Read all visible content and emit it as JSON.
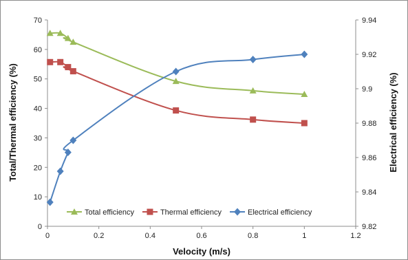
{
  "chart_data": {
    "type": "line",
    "title": "",
    "xlabel": "Velocity (m/s)",
    "ylabel_left": "Total/Thermal efficiency (%)",
    "ylabel_right": "Electrical efficiency (%)",
    "xlim": [
      0,
      1.2
    ],
    "xticks": [
      "0",
      "0.2",
      "0.4",
      "0.6",
      "0.8",
      "1",
      "1.2"
    ],
    "ylim_left": [
      0,
      70
    ],
    "yticks_left": [
      "0",
      "10",
      "20",
      "30",
      "40",
      "50",
      "60",
      "70"
    ],
    "ylim_right": [
      9.82,
      9.94
    ],
    "yticks_right": [
      "9.82",
      "9.84",
      "9.86",
      "9.88",
      "9.9",
      "9.92",
      "9.94"
    ],
    "grid": false,
    "legend_position": "bottom-inside",
    "series": [
      {
        "name": "Total efficiency",
        "axis": "left",
        "color": "#9BBB59",
        "marker": "triangle",
        "x": [
          0.01,
          0.05,
          0.08,
          0.1,
          0.5,
          0.8,
          1.0
        ],
        "y": [
          65.5,
          65.5,
          63.8,
          62.5,
          49.2,
          46.0,
          44.8
        ]
      },
      {
        "name": "Thermal efficiency",
        "axis": "left",
        "color": "#C0504D",
        "marker": "square",
        "x": [
          0.01,
          0.05,
          0.08,
          0.1,
          0.5,
          0.8,
          1.0
        ],
        "y": [
          55.7,
          55.7,
          54.0,
          52.6,
          39.3,
          36.2,
          35.0
        ]
      },
      {
        "name": "Electrical efficiency",
        "axis": "right",
        "color": "#4F81BD",
        "marker": "diamond",
        "x": [
          0.01,
          0.05,
          0.08,
          0.1,
          0.5,
          0.8,
          1.0
        ],
        "y": [
          9.834,
          9.852,
          9.863,
          9.87,
          9.91,
          9.917,
          9.92
        ]
      }
    ]
  }
}
